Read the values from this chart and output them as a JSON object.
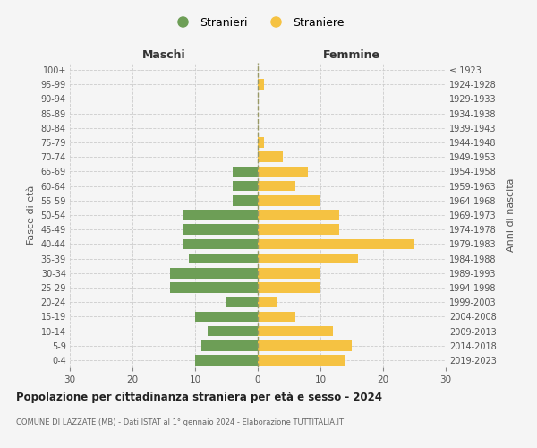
{
  "age_groups": [
    "0-4",
    "5-9",
    "10-14",
    "15-19",
    "20-24",
    "25-29",
    "30-34",
    "35-39",
    "40-44",
    "45-49",
    "50-54",
    "55-59",
    "60-64",
    "65-69",
    "70-74",
    "75-79",
    "80-84",
    "85-89",
    "90-94",
    "95-99",
    "100+"
  ],
  "birth_years": [
    "2019-2023",
    "2014-2018",
    "2009-2013",
    "2004-2008",
    "1999-2003",
    "1994-1998",
    "1989-1993",
    "1984-1988",
    "1979-1983",
    "1974-1978",
    "1969-1973",
    "1964-1968",
    "1959-1963",
    "1954-1958",
    "1949-1953",
    "1944-1948",
    "1939-1943",
    "1934-1938",
    "1929-1933",
    "1924-1928",
    "≤ 1923"
  ],
  "males": [
    10,
    9,
    8,
    10,
    5,
    14,
    14,
    11,
    12,
    12,
    12,
    4,
    4,
    4,
    0,
    0,
    0,
    0,
    0,
    0,
    0
  ],
  "females": [
    14,
    15,
    12,
    6,
    3,
    10,
    10,
    16,
    25,
    13,
    13,
    10,
    6,
    8,
    4,
    1,
    0,
    0,
    0,
    1,
    0
  ],
  "male_color": "#6d9e56",
  "female_color": "#f5c242",
  "background_color": "#f5f5f5",
  "grid_color": "#cccccc",
  "title": "Popolazione per cittadinanza straniera per età e sesso - 2024",
  "subtitle": "COMUNE DI LAZZATE (MB) - Dati ISTAT al 1° gennaio 2024 - Elaborazione TUTTITALIA.IT",
  "xlabel_left": "Maschi",
  "xlabel_right": "Femmine",
  "ylabel_left": "Fasce di età",
  "ylabel_right": "Anni di nascita",
  "legend_male": "Stranieri",
  "legend_female": "Straniere",
  "xlim": 30,
  "bar_height": 0.72
}
